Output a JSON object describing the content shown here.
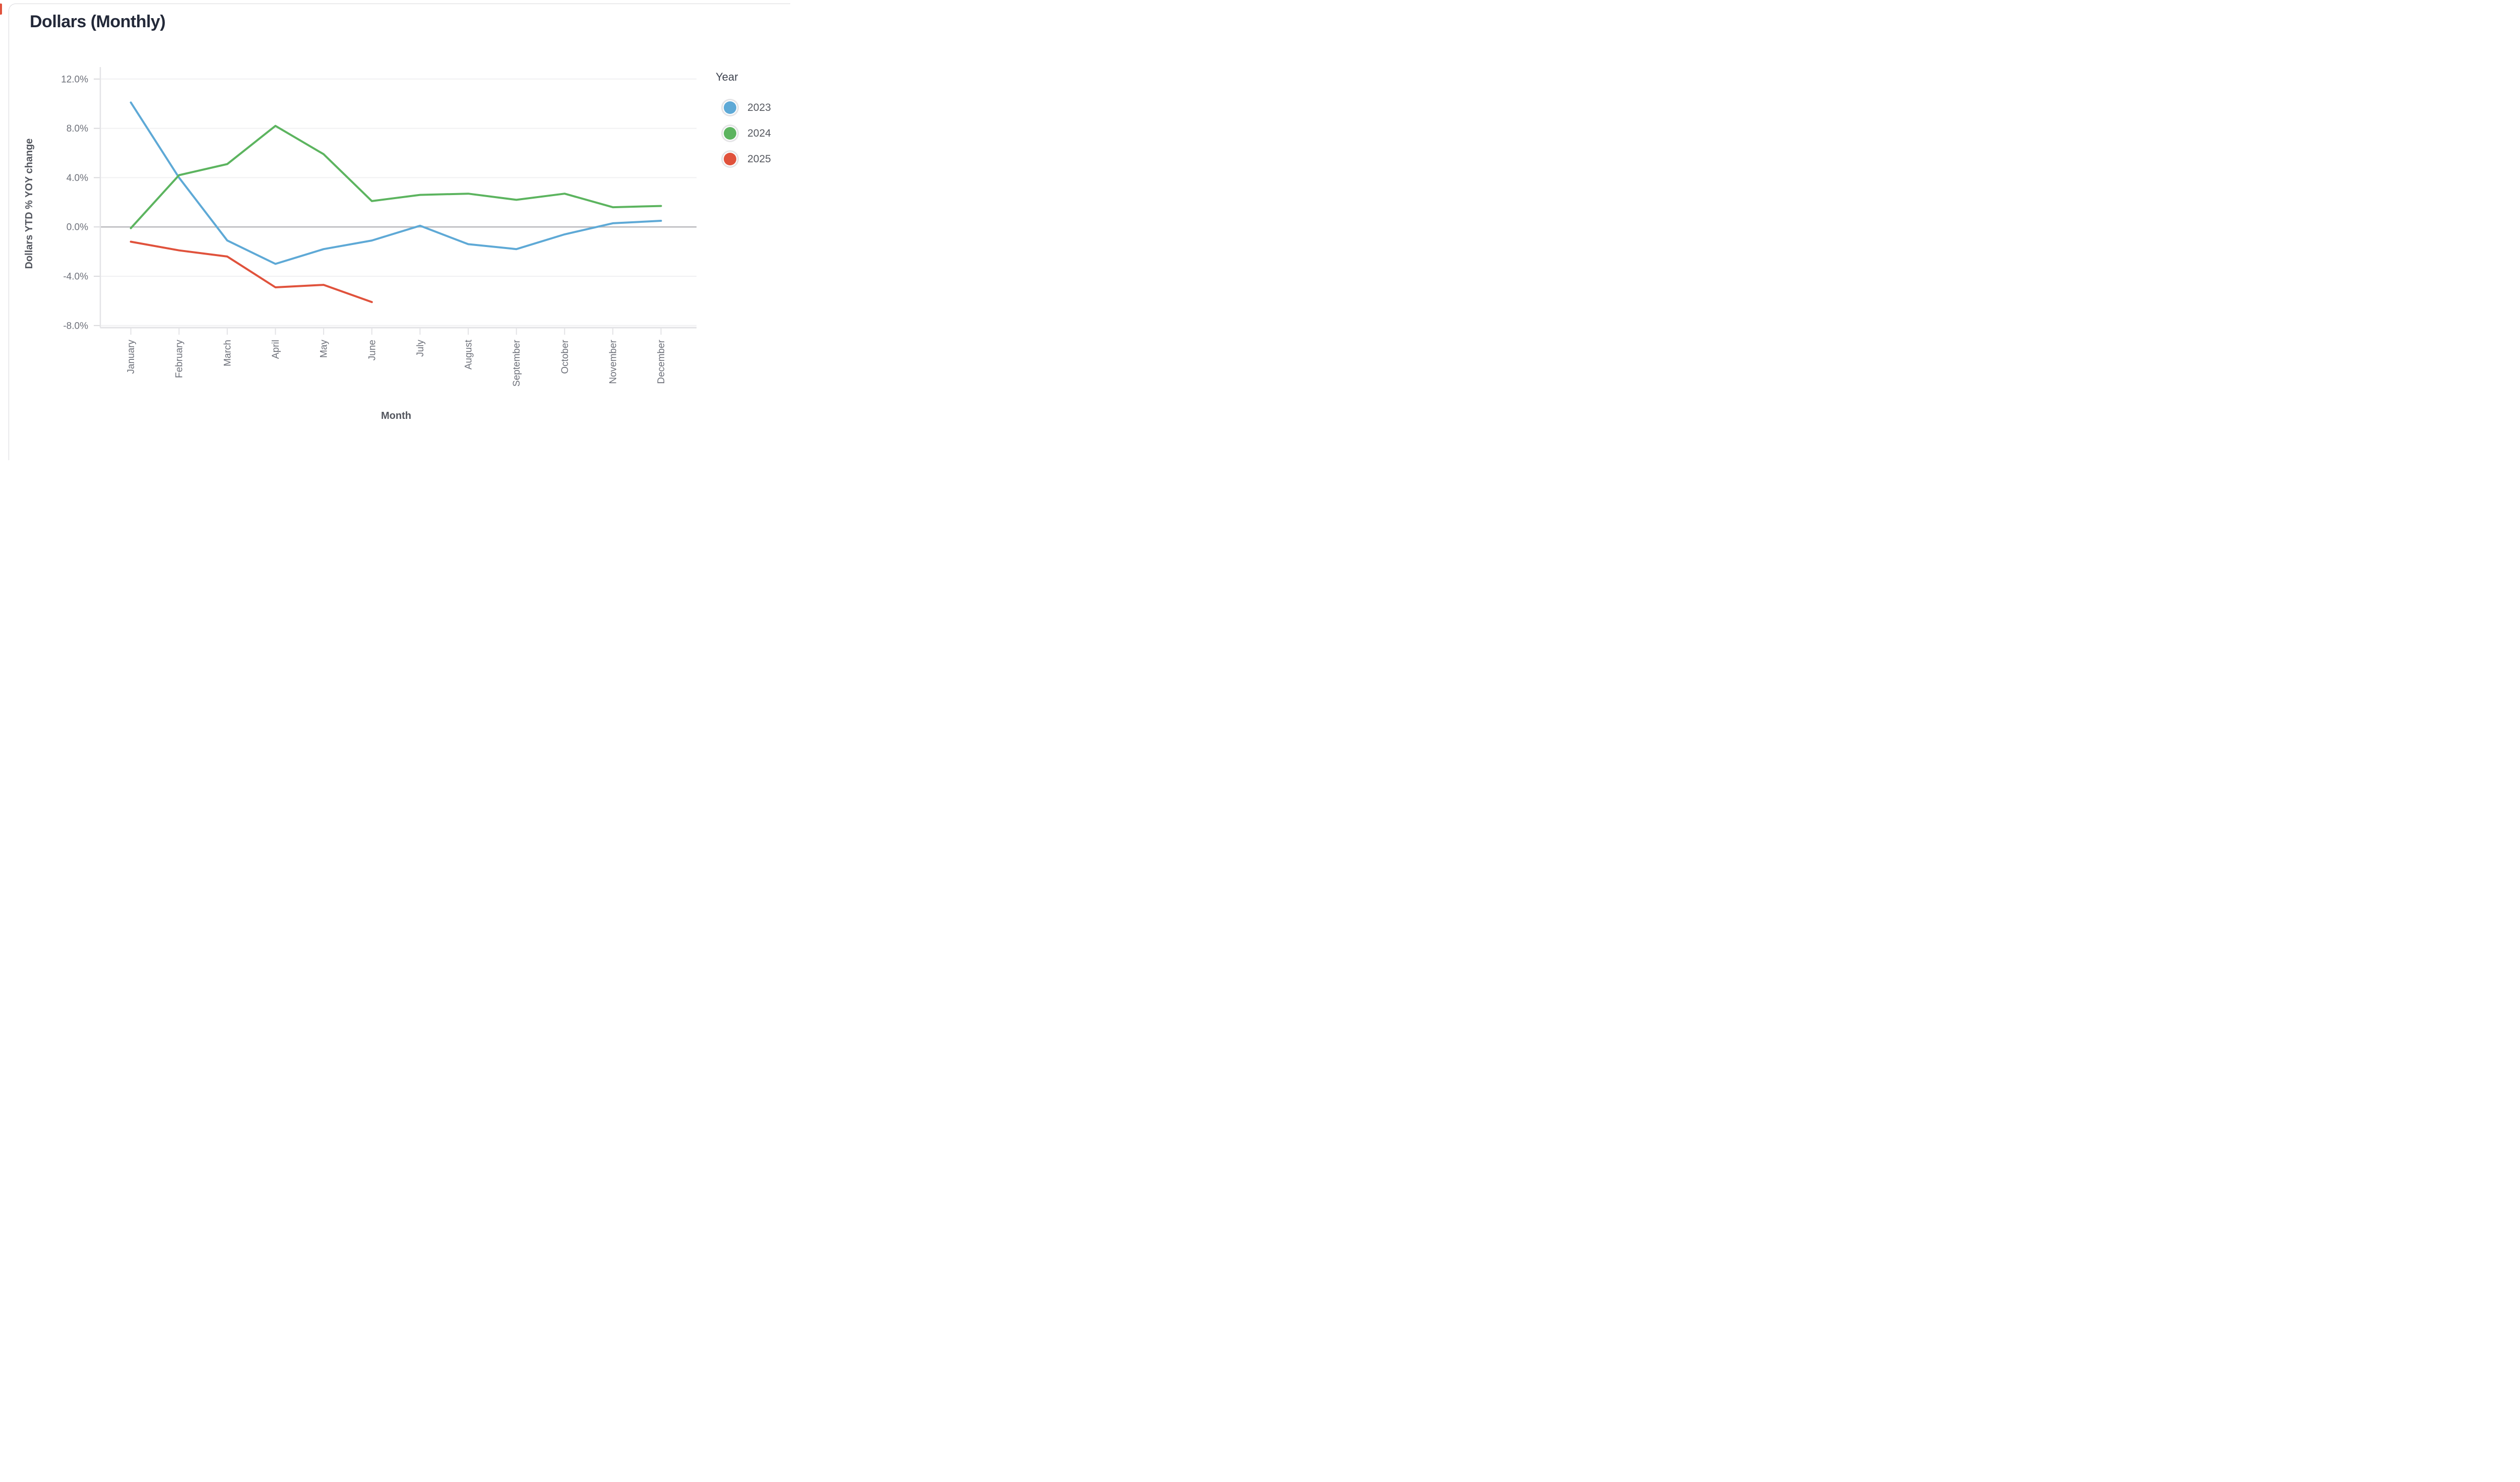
{
  "chart_data": {
    "type": "line",
    "title": "Dollars (Monthly)",
    "xlabel": "Month",
    "ylabel": "Dollars YTD % YOY change",
    "categories": [
      "January",
      "February",
      "March",
      "April",
      "May",
      "June",
      "July",
      "August",
      "September",
      "October",
      "November",
      "December"
    ],
    "y_ticks": [
      {
        "value": 12,
        "label": "12.0%"
      },
      {
        "value": 8,
        "label": "8.0%"
      },
      {
        "value": 4,
        "label": "4.0%"
      },
      {
        "value": 0,
        "label": "0.0%"
      },
      {
        "value": -4,
        "label": "-4.0%"
      },
      {
        "value": -8,
        "label": "-8.0%"
      }
    ],
    "ylim": [
      -8.2,
      13.0
    ],
    "grid": true,
    "legend": {
      "title": "Year",
      "position": "right"
    },
    "series": [
      {
        "name": "2023",
        "color": "#5EA9D6",
        "values": [
          10.1,
          4.0,
          -1.1,
          -3.0,
          -1.8,
          -1.1,
          0.1,
          -1.4,
          -1.8,
          -0.6,
          0.3,
          0.5
        ]
      },
      {
        "name": "2024",
        "color": "#5CB45F",
        "values": [
          -0.1,
          4.2,
          5.1,
          8.2,
          5.9,
          2.1,
          2.6,
          2.7,
          2.2,
          2.7,
          1.6,
          1.7
        ]
      },
      {
        "name": "2025",
        "color": "#E0523C",
        "values": [
          -1.2,
          -1.9,
          -2.4,
          -4.9,
          -4.7,
          -6.1,
          null,
          null,
          null,
          null,
          null,
          null
        ]
      }
    ]
  }
}
